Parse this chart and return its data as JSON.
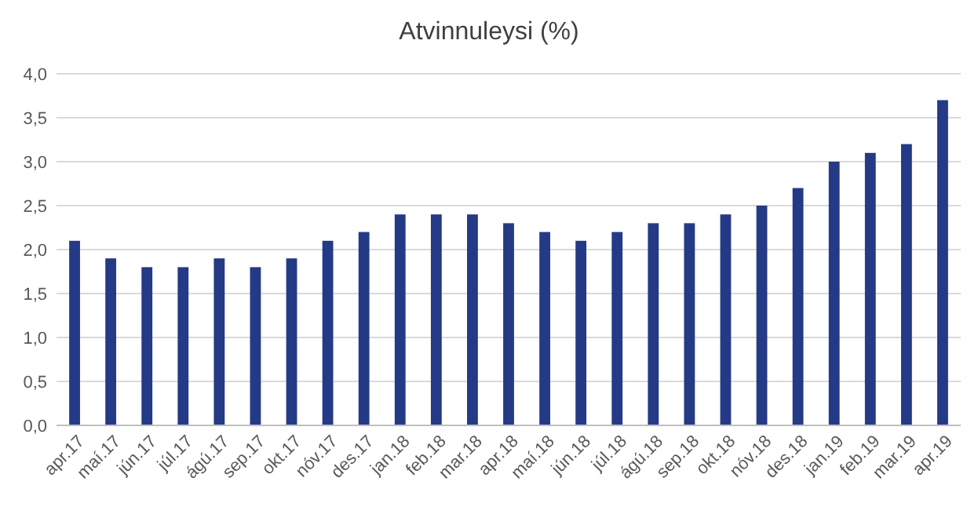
{
  "chart_data": {
    "type": "bar",
    "title": "Atvinnuleysi (%)",
    "categories": [
      "apr.17",
      "maí.17",
      "jún.17",
      "júl.17",
      "ágú.17",
      "sep.17",
      "okt.17",
      "nóv.17",
      "des.17",
      "jan.18",
      "feb.18",
      "mar.18",
      "apr.18",
      "maí.18",
      "jún.18",
      "júl.18",
      "ágú.18",
      "sep.18",
      "okt.18",
      "nóv.18",
      "des.18",
      "jan.19",
      "feb.19",
      "mar.19",
      "apr.19"
    ],
    "values": [
      2.1,
      1.9,
      1.8,
      1.8,
      1.9,
      1.8,
      1.9,
      2.1,
      2.2,
      2.4,
      2.4,
      2.4,
      2.3,
      2.2,
      2.1,
      2.2,
      2.3,
      2.3,
      2.4,
      2.5,
      2.7,
      3.0,
      3.1,
      3.2,
      3.7
    ],
    "color": "#253a86",
    "ylim": [
      0,
      4
    ],
    "yticks": [
      {
        "value": 0,
        "label": "0,0"
      },
      {
        "value": 0.5,
        "label": "0,5"
      },
      {
        "value": 1,
        "label": "1,0"
      },
      {
        "value": 1.5,
        "label": "1,5"
      },
      {
        "value": 2,
        "label": "2,0"
      },
      {
        "value": 2.5,
        "label": "2,5"
      },
      {
        "value": 3,
        "label": "3,0"
      },
      {
        "value": 3.5,
        "label": "3,5"
      },
      {
        "value": 4,
        "label": "4,0"
      }
    ],
    "grid": "y"
  }
}
